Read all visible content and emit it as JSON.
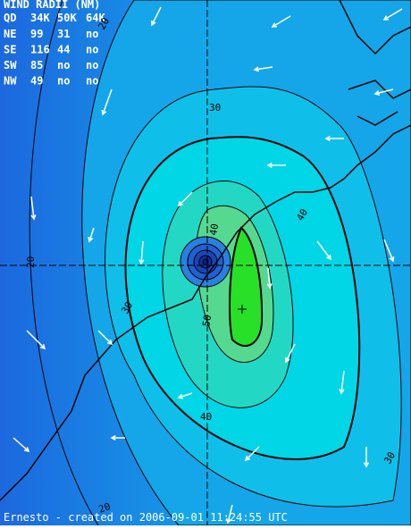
{
  "wind_radii": {
    "title": "WIND RADII (NM)",
    "header": [
      "QD",
      "34K",
      "50K",
      "64K"
    ],
    "rows": [
      [
        "NE",
        "99",
        "31",
        "no"
      ],
      [
        "SE",
        "116",
        "44",
        "no"
      ],
      [
        "SW",
        "85",
        "no",
        "no"
      ],
      [
        "NW",
        "49",
        "no",
        "no"
      ]
    ]
  },
  "contour_labels": [
    20,
    30,
    20,
    30,
    40,
    40,
    50,
    40,
    30,
    20
  ],
  "footer": "Ernesto - created on 2006-09-01 11:24:55 UTC"
}
